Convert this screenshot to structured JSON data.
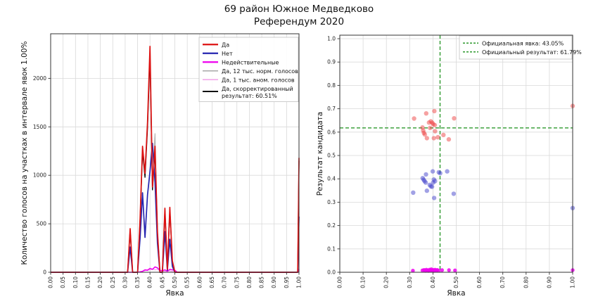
{
  "figure": {
    "title_line1": "69 район Южное Медведково",
    "title_line2": "Референдум 2020"
  },
  "chart_data": [
    {
      "type": "line",
      "name": "votes-by-turnout-histogram",
      "xlabel": "Явка",
      "ylabel": "Количество голосов на участках в интервале явок 1.00%",
      "xlim": [
        0,
        1
      ],
      "ylim": [
        0,
        2460
      ],
      "grid": true,
      "legend_position": "upper right",
      "xticks": {
        "values": [
          0,
          0.05,
          0.1,
          0.15,
          0.2,
          0.25,
          0.3,
          0.35,
          0.4,
          0.45,
          0.5,
          0.55,
          0.6,
          0.65,
          0.7,
          0.75,
          0.8,
          0.85,
          0.9,
          0.95,
          1.0
        ],
        "labels": [
          "0.00",
          "0.05",
          "0.10",
          "0.15",
          "0.20",
          "0.25",
          "0.30",
          "0.35",
          "0.40",
          "0.45",
          "0.50",
          "0.55",
          "0.60",
          "0.65",
          "0.70",
          "0.75",
          "0.80",
          "0.85",
          "0.90",
          "0.95",
          "1.00"
        ]
      },
      "yticks": {
        "values": [
          0,
          500,
          1000,
          1500,
          2000
        ],
        "labels": [
          "0",
          "500",
          "1000",
          "1500",
          "2000"
        ]
      },
      "series": [
        {
          "id": "da-line",
          "label": "Да",
          "color": "#dd1111",
          "lw": 1.7,
          "zorder": 6,
          "x": [
            0,
            0.3,
            0.31,
            0.32,
            0.33,
            0.35,
            0.36,
            0.37,
            0.38,
            0.39,
            0.4,
            0.41,
            0.42,
            0.43,
            0.44,
            0.45,
            0.46,
            0.47,
            0.48,
            0.49,
            0.5,
            0.52,
            0.985,
            0.995,
            1.0
          ],
          "y": [
            0,
            0,
            0,
            450,
            0,
            0,
            550,
            1300,
            1020,
            1550,
            2330,
            880,
            1300,
            420,
            0,
            0,
            660,
            30,
            670,
            120,
            0,
            0,
            0,
            0,
            1180
          ]
        },
        {
          "id": "net-line",
          "label": "Нет",
          "color": "#2525b0",
          "lw": 1.7,
          "zorder": 5,
          "x": [
            0,
            0.3,
            0.31,
            0.32,
            0.33,
            0.35,
            0.36,
            0.37,
            0.38,
            0.39,
            0.4,
            0.41,
            0.42,
            0.43,
            0.44,
            0.45,
            0.46,
            0.47,
            0.48,
            0.49,
            0.5,
            0.52,
            0.985,
            0.995,
            1.0
          ],
          "y": [
            0,
            0,
            0,
            260,
            0,
            0,
            350,
            820,
            360,
            800,
            1040,
            1330,
            930,
            300,
            0,
            0,
            420,
            20,
            340,
            60,
            0,
            0,
            0,
            0,
            575
          ]
        },
        {
          "id": "invalid-line",
          "label": "Недействительные",
          "color": "#ee00ee",
          "lw": 1.6,
          "zorder": 4,
          "x": [
            0,
            0.35,
            0.37,
            0.38,
            0.39,
            0.4,
            0.41,
            0.42,
            0.43,
            0.44,
            0.45,
            0.46,
            0.47,
            0.48,
            0.49,
            0.5,
            0.51,
            0.985,
            0.995,
            1.0
          ],
          "y": [
            0,
            0,
            10,
            25,
            20,
            40,
            30,
            55,
            45,
            20,
            15,
            25,
            10,
            30,
            25,
            20,
            0,
            0,
            0,
            30
          ]
        },
        {
          "id": "da-12k-norm-line",
          "label": "Да, 12 тыс. норм. голосов",
          "color": "#a8a8a8",
          "lw": 1,
          "zorder": 1,
          "x": [
            0,
            0.3,
            0.31,
            0.32,
            0.33,
            0.35,
            0.36,
            0.37,
            0.38,
            0.39,
            0.4,
            0.41,
            0.42,
            0.43,
            0.44,
            0.45,
            0.46,
            0.47,
            0.48,
            0.49,
            0.5,
            0.52,
            0.985,
            0.995,
            1.0
          ],
          "y": [
            0,
            0,
            0,
            440,
            0,
            0,
            540,
            1280,
            1000,
            1520,
            2290,
            870,
            1430,
            410,
            0,
            0,
            665,
            30,
            665,
            115,
            0,
            0,
            0,
            0,
            0
          ]
        },
        {
          "id": "da-1k-anom-line",
          "label": "Да, 1 тыс. аном. голосов",
          "color": "#f2a2e8",
          "lw": 1,
          "zorder": 2,
          "x": [
            0,
            0.36,
            0.38,
            0.39,
            0.4,
            0.41,
            0.42,
            0.43,
            0.44,
            0.45,
            0.46,
            0.48,
            0.5,
            0.985,
            0.995,
            1.0
          ],
          "y": [
            0,
            0,
            15,
            30,
            20,
            35,
            25,
            30,
            10,
            5,
            8,
            15,
            0,
            0,
            0,
            45
          ]
        },
        {
          "id": "da-corrected-line",
          "label": "Да, скорректированный",
          "label2": "результат: 60.51%",
          "color": "#101010",
          "lw": 1.4,
          "zorder": 3,
          "x": [
            0,
            0.3,
            0.31,
            0.32,
            0.33,
            0.35,
            0.36,
            0.37,
            0.38,
            0.39,
            0.4,
            0.41,
            0.42,
            0.43,
            0.44,
            0.45,
            0.46,
            0.47,
            0.48,
            0.49,
            0.5,
            0.52,
            0.985,
            0.995,
            1.0
          ],
          "y": [
            0,
            0,
            0,
            430,
            0,
            0,
            530,
            1250,
            980,
            1490,
            2240,
            850,
            1260,
            400,
            0,
            0,
            640,
            25,
            645,
            110,
            0,
            0,
            0,
            0,
            1150
          ]
        }
      ]
    },
    {
      "type": "scatter",
      "name": "result-vs-turnout-scatter",
      "xlabel": "Явка",
      "ylabel": "Результат кандидата",
      "xlim": [
        0,
        1
      ],
      "ylim": [
        0,
        1
      ],
      "grid": true,
      "legend_position": "upper right",
      "xticks": {
        "values": [
          0,
          0.1,
          0.2,
          0.3,
          0.4,
          0.5,
          0.6,
          0.7,
          0.8,
          0.9,
          1.0
        ],
        "labels": [
          "0.00",
          "0.10",
          "0.20",
          "0.30",
          "0.40",
          "0.50",
          "0.60",
          "0.70",
          "0.80",
          "0.90",
          "1.00"
        ]
      },
      "yticks": {
        "values": [
          0,
          0.1,
          0.2,
          0.3,
          0.4,
          0.5,
          0.6,
          0.7,
          0.8,
          0.9,
          1.0
        ],
        "labels": [
          "0.0",
          "0.1",
          "0.2",
          "0.3",
          "0.4",
          "0.5",
          "0.6",
          "0.7",
          "0.8",
          "0.9",
          "1.0"
        ]
      },
      "ref_lines": [
        {
          "id": "official-turnout-line",
          "orient": "v",
          "value": 0.4305,
          "label": "Официальная явка: 43.05%",
          "color": "#2e992e"
        },
        {
          "id": "official-result-line",
          "orient": "h",
          "value": 0.6179,
          "label": "Официальный результат: 61.79%",
          "color": "#2e992e"
        }
      ],
      "series": [
        {
          "id": "da-points",
          "label": "Да",
          "color": "#ee4444",
          "opacity": 0.5,
          "r": 3.2,
          "points": [
            [
              0.319,
              0.658
            ],
            [
              0.371,
              0.68
            ],
            [
              0.406,
              0.69
            ],
            [
              0.491,
              0.659
            ],
            [
              0.383,
              0.641
            ],
            [
              0.391,
              0.646
            ],
            [
              0.397,
              0.64
            ],
            [
              0.401,
              0.634
            ],
            [
              0.408,
              0.63
            ],
            [
              0.355,
              0.62
            ],
            [
              0.358,
              0.607
            ],
            [
              0.361,
              0.597
            ],
            [
              0.365,
              0.59
            ],
            [
              0.388,
              0.618
            ],
            [
              0.409,
              0.604
            ],
            [
              0.374,
              0.574
            ],
            [
              0.404,
              0.574
            ],
            [
              0.421,
              0.578
            ],
            [
              0.445,
              0.588
            ],
            [
              0.468,
              0.569
            ],
            [
              1.0,
              0.712
            ]
          ]
        },
        {
          "id": "net-points",
          "label": "Нет",
          "color": "#4444cc",
          "opacity": 0.5,
          "r": 3.2,
          "points": [
            [
              0.399,
              0.432
            ],
            [
              0.425,
              0.428
            ],
            [
              0.431,
              0.424
            ],
            [
              0.461,
              0.432
            ],
            [
              0.37,
              0.419
            ],
            [
              0.356,
              0.403
            ],
            [
              0.36,
              0.396
            ],
            [
              0.364,
              0.39
            ],
            [
              0.369,
              0.384
            ],
            [
              0.404,
              0.397
            ],
            [
              0.409,
              0.39
            ],
            [
              0.401,
              0.384
            ],
            [
              0.386,
              0.374
            ],
            [
              0.391,
              0.368
            ],
            [
              0.396,
              0.366
            ],
            [
              0.374,
              0.349
            ],
            [
              0.315,
              0.341
            ],
            [
              0.489,
              0.336
            ],
            [
              0.405,
              0.318
            ],
            [
              1.0,
              0.275
            ]
          ]
        },
        {
          "id": "invalid-points",
          "label": "Недействительные",
          "color": "#ee00ee",
          "opacity": 0.85,
          "r": 2.7,
          "points": [
            [
              0.314,
              0.007
            ],
            [
              0.355,
              0.008
            ],
            [
              0.362,
              0.01
            ],
            [
              0.368,
              0.006
            ],
            [
              0.372,
              0.011
            ],
            [
              0.377,
              0.007
            ],
            [
              0.381,
              0.006
            ],
            [
              0.385,
              0.011
            ],
            [
              0.389,
              0.008
            ],
            [
              0.393,
              0.013
            ],
            [
              0.397,
              0.007
            ],
            [
              0.401,
              0.01
            ],
            [
              0.405,
              0.006
            ],
            [
              0.409,
              0.011
            ],
            [
              0.414,
              0.008
            ],
            [
              0.419,
              0.01
            ],
            [
              0.424,
              0.007
            ],
            [
              0.439,
              0.009
            ],
            [
              0.469,
              0.009
            ],
            [
              0.495,
              0.008
            ],
            [
              1.0,
              0.009
            ]
          ]
        }
      ]
    }
  ]
}
